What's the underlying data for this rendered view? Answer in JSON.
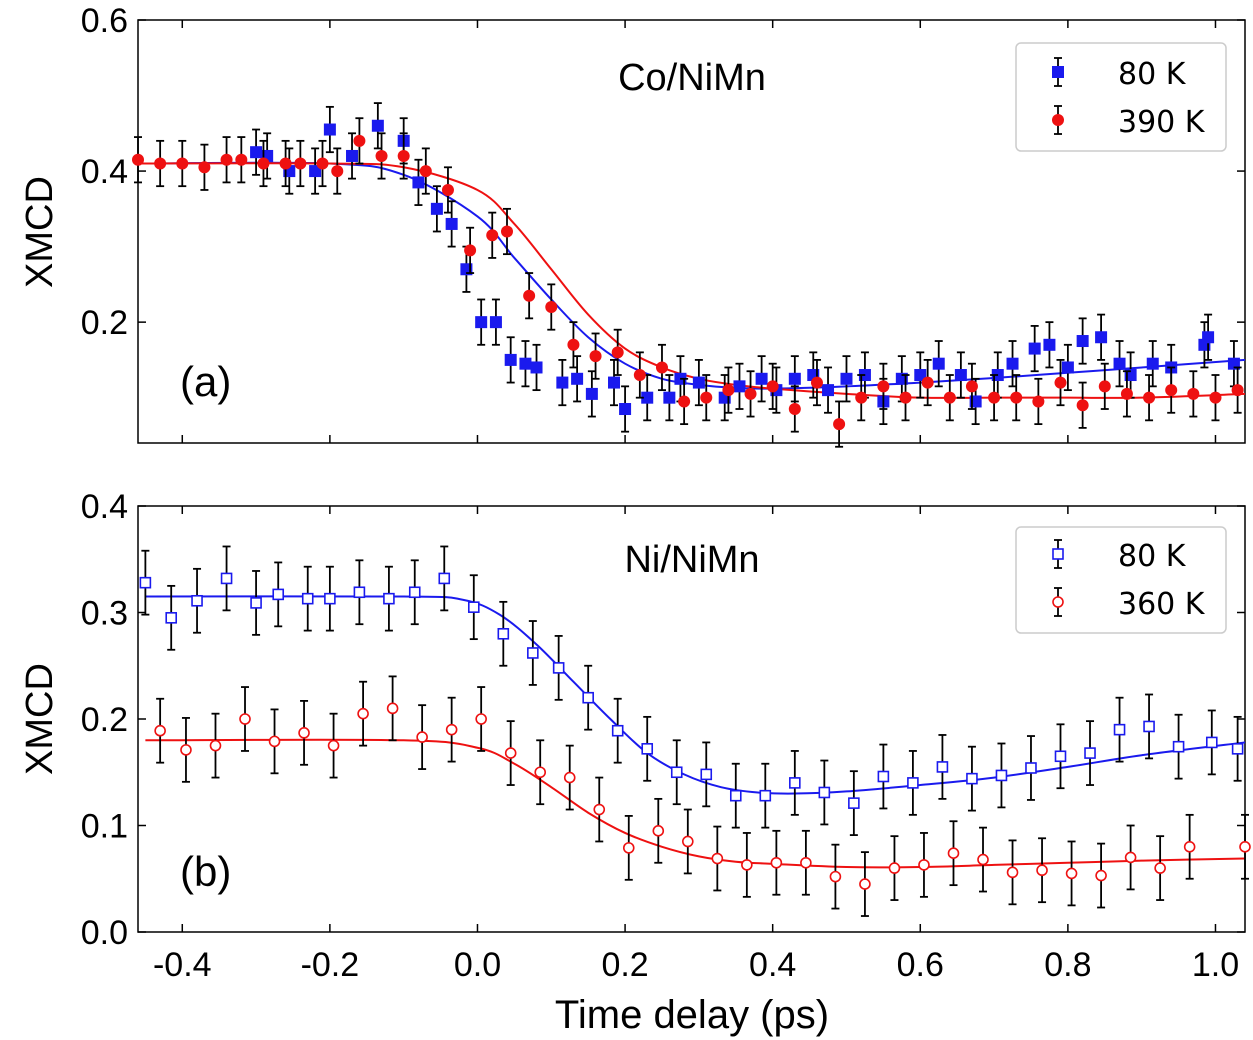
{
  "x_axis": {
    "label": "Time delay (ps)",
    "range": [
      -0.46,
      1.04
    ],
    "ticks": [
      "-0.4",
      "-0.2",
      "0.0",
      "0.2",
      "0.4",
      "0.6",
      "0.8",
      "1.0"
    ],
    "tick_values": [
      -0.4,
      -0.2,
      0.0,
      0.2,
      0.4,
      0.6,
      0.8,
      1.0
    ]
  },
  "colors": {
    "blue": "#1a1aee",
    "red": "#ee1111"
  },
  "chart_data": [
    {
      "type": "scatter",
      "panel_label": "(a)",
      "sample_label": "Co/NiMn",
      "ylabel": "XMCD",
      "xlim": [
        -0.46,
        1.04
      ],
      "ylim": [
        0.04,
        0.6
      ],
      "yticks": [
        "0.2",
        "0.4",
        "0.6"
      ],
      "ytick_values": [
        0.2,
        0.4,
        0.6
      ],
      "legend_position": "top-right",
      "series": [
        {
          "name": "80 K",
          "marker": "filled-square",
          "color": "#1a1aee",
          "x": [
            -0.3,
            -0.285,
            -0.255,
            -0.22,
            -0.2,
            -0.17,
            -0.135,
            -0.1,
            -0.08,
            -0.055,
            -0.035,
            -0.015,
            0.005,
            0.025,
            0.045,
            0.065,
            0.08,
            0.115,
            0.135,
            0.155,
            0.185,
            0.2,
            0.23,
            0.26,
            0.275,
            0.3,
            0.335,
            0.355,
            0.385,
            0.405,
            0.43,
            0.455,
            0.475,
            0.5,
            0.525,
            0.55,
            0.575,
            0.6,
            0.625,
            0.655,
            0.675,
            0.705,
            0.725,
            0.755,
            0.775,
            0.8,
            0.82,
            0.845,
            0.87,
            0.885,
            0.915,
            0.94,
            0.985,
            0.99,
            1.025
          ],
          "y": [
            0.425,
            0.42,
            0.4,
            0.4,
            0.455,
            0.42,
            0.46,
            0.44,
            0.385,
            0.35,
            0.33,
            0.27,
            0.2,
            0.2,
            0.15,
            0.145,
            0.14,
            0.12,
            0.125,
            0.105,
            0.12,
            0.085,
            0.1,
            0.1,
            0.125,
            0.12,
            0.1,
            0.115,
            0.125,
            0.11,
            0.125,
            0.13,
            0.11,
            0.125,
            0.13,
            0.095,
            0.125,
            0.13,
            0.145,
            0.13,
            0.095,
            0.13,
            0.145,
            0.165,
            0.17,
            0.14,
            0.175,
            0.18,
            0.145,
            0.13,
            0.145,
            0.14,
            0.17,
            0.18,
            0.145
          ],
          "yerr": 0.03
        },
        {
          "name": "390 K",
          "marker": "filled-circle",
          "color": "#ee1111",
          "x": [
            -0.46,
            -0.43,
            -0.4,
            -0.37,
            -0.34,
            -0.32,
            -0.29,
            -0.26,
            -0.24,
            -0.21,
            -0.19,
            -0.16,
            -0.13,
            -0.1,
            -0.07,
            -0.04,
            -0.01,
            0.02,
            0.04,
            0.07,
            0.1,
            0.13,
            0.16,
            0.19,
            0.22,
            0.25,
            0.28,
            0.31,
            0.34,
            0.37,
            0.4,
            0.43,
            0.46,
            0.49,
            0.52,
            0.55,
            0.58,
            0.61,
            0.64,
            0.67,
            0.7,
            0.73,
            0.76,
            0.79,
            0.82,
            0.85,
            0.88,
            0.91,
            0.94,
            0.97,
            1.0,
            1.03
          ],
          "y": [
            0.415,
            0.41,
            0.41,
            0.405,
            0.415,
            0.415,
            0.41,
            0.41,
            0.41,
            0.41,
            0.4,
            0.44,
            0.42,
            0.42,
            0.4,
            0.375,
            0.295,
            0.315,
            0.32,
            0.235,
            0.22,
            0.17,
            0.155,
            0.16,
            0.13,
            0.14,
            0.095,
            0.1,
            0.11,
            0.105,
            0.115,
            0.085,
            0.12,
            0.065,
            0.1,
            0.115,
            0.1,
            0.12,
            0.1,
            0.115,
            0.1,
            0.1,
            0.095,
            0.12,
            0.09,
            0.115,
            0.105,
            0.1,
            0.11,
            0.105,
            0.1,
            0.11
          ],
          "yerr": 0.03
        }
      ],
      "fits": [
        {
          "series": "80 K",
          "color": "#1a1aee",
          "x": [
            -0.46,
            -0.2,
            -0.1,
            0.0,
            0.05,
            0.1,
            0.15,
            0.2,
            0.25,
            0.3,
            0.35,
            0.4,
            0.5,
            0.6,
            0.7,
            0.8,
            0.9,
            1.04
          ],
          "y": [
            0.41,
            0.41,
            0.395,
            0.34,
            0.285,
            0.23,
            0.18,
            0.145,
            0.125,
            0.117,
            0.113,
            0.112,
            0.115,
            0.12,
            0.126,
            0.133,
            0.14,
            0.15
          ]
        },
        {
          "series": "390 K",
          "color": "#ee1111",
          "x": [
            -0.46,
            -0.2,
            -0.1,
            0.0,
            0.05,
            0.1,
            0.15,
            0.2,
            0.25,
            0.3,
            0.35,
            0.4,
            0.5,
            0.6,
            0.7,
            0.8,
            0.9,
            1.04
          ],
          "y": [
            0.41,
            0.41,
            0.405,
            0.375,
            0.33,
            0.27,
            0.21,
            0.165,
            0.14,
            0.125,
            0.117,
            0.112,
            0.105,
            0.1,
            0.1,
            0.1,
            0.1,
            0.105
          ]
        }
      ]
    },
    {
      "type": "scatter",
      "panel_label": "(b)",
      "sample_label": "Ni/NiMn",
      "ylabel": "XMCD",
      "xlim": [
        -0.46,
        1.04
      ],
      "ylim": [
        0.0,
        0.4
      ],
      "yticks": [
        "0.0",
        "0.1",
        "0.2",
        "0.3",
        "0.4"
      ],
      "ytick_values": [
        0.0,
        0.1,
        0.2,
        0.3,
        0.4
      ],
      "legend_position": "top-right",
      "series": [
        {
          "name": "80 K",
          "marker": "open-square",
          "color": "#1a1aee",
          "x": [
            -0.45,
            -0.415,
            -0.38,
            -0.34,
            -0.3,
            -0.27,
            -0.23,
            -0.2,
            -0.16,
            -0.12,
            -0.085,
            -0.045,
            -0.005,
            0.035,
            0.075,
            0.11,
            0.15,
            0.19,
            0.23,
            0.27,
            0.31,
            0.35,
            0.39,
            0.43,
            0.47,
            0.51,
            0.55,
            0.59,
            0.63,
            0.67,
            0.71,
            0.75,
            0.79,
            0.83,
            0.87,
            0.91,
            0.95,
            0.995,
            1.03
          ],
          "y": [
            0.328,
            0.295,
            0.311,
            0.332,
            0.309,
            0.317,
            0.313,
            0.313,
            0.319,
            0.313,
            0.319,
            0.332,
            0.305,
            0.28,
            0.262,
            0.248,
            0.22,
            0.189,
            0.172,
            0.15,
            0.148,
            0.128,
            0.128,
            0.14,
            0.131,
            0.121,
            0.146,
            0.14,
            0.155,
            0.144,
            0.147,
            0.154,
            0.165,
            0.168,
            0.19,
            0.193,
            0.174,
            0.178,
            0.172
          ],
          "yerr": 0.03
        },
        {
          "name": "360 K",
          "marker": "open-circle",
          "color": "#ee1111",
          "x": [
            -0.43,
            -0.395,
            -0.355,
            -0.315,
            -0.275,
            -0.235,
            -0.195,
            -0.155,
            -0.115,
            -0.075,
            -0.035,
            0.005,
            0.045,
            0.085,
            0.125,
            0.165,
            0.205,
            0.245,
            0.285,
            0.325,
            0.365,
            0.405,
            0.445,
            0.485,
            0.525,
            0.565,
            0.605,
            0.645,
            0.685,
            0.725,
            0.765,
            0.805,
            0.845,
            0.885,
            0.925,
            0.965,
            1.04
          ],
          "y": [
            0.189,
            0.171,
            0.175,
            0.2,
            0.179,
            0.187,
            0.175,
            0.205,
            0.21,
            0.183,
            0.19,
            0.2,
            0.168,
            0.15,
            0.145,
            0.115,
            0.079,
            0.095,
            0.085,
            0.069,
            0.063,
            0.065,
            0.065,
            0.052,
            0.045,
            0.06,
            0.063,
            0.074,
            0.068,
            0.056,
            0.058,
            0.055,
            0.053,
            0.07,
            0.06,
            0.08,
            0.08
          ],
          "yerr": 0.03
        }
      ],
      "fits": [
        {
          "series": "80 K",
          "color": "#1a1aee",
          "x": [
            -0.45,
            -0.1,
            -0.02,
            0.03,
            0.08,
            0.13,
            0.18,
            0.23,
            0.28,
            0.33,
            0.38,
            0.43,
            0.5,
            0.6,
            0.7,
            0.8,
            0.9,
            1.04
          ],
          "y": [
            0.315,
            0.315,
            0.312,
            0.298,
            0.27,
            0.235,
            0.2,
            0.168,
            0.148,
            0.136,
            0.131,
            0.13,
            0.132,
            0.138,
            0.145,
            0.155,
            0.166,
            0.178
          ]
        },
        {
          "series": "360 K",
          "color": "#ee1111",
          "x": [
            -0.45,
            -0.1,
            0.0,
            0.05,
            0.1,
            0.15,
            0.2,
            0.25,
            0.3,
            0.35,
            0.4,
            0.5,
            0.6,
            0.7,
            0.8,
            0.9,
            1.04
          ],
          "y": [
            0.18,
            0.18,
            0.173,
            0.158,
            0.136,
            0.112,
            0.093,
            0.08,
            0.071,
            0.066,
            0.064,
            0.061,
            0.061,
            0.063,
            0.065,
            0.067,
            0.069
          ]
        }
      ]
    }
  ]
}
